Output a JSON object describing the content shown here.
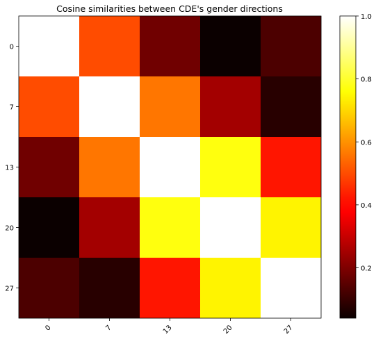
{
  "chart_data": {
    "type": "heatmap",
    "title": "Cosine similarities between CDE's gender directions",
    "colormap": "hot",
    "vmin": 0.04,
    "vmax": 1.0,
    "row_labels": [
      "0",
      "7",
      "13",
      "20",
      "27"
    ],
    "col_labels": [
      "0",
      "7",
      "13",
      "20",
      "27"
    ],
    "values": [
      [
        1.0,
        0.5,
        0.18,
        0.04,
        0.13
      ],
      [
        0.5,
        1.0,
        0.56,
        0.25,
        0.08
      ],
      [
        0.18,
        0.56,
        1.0,
        0.77,
        0.42
      ],
      [
        0.04,
        0.25,
        0.77,
        1.0,
        0.74
      ],
      [
        0.13,
        0.08,
        0.42,
        0.74,
        1.0
      ]
    ],
    "colorbar_ticks": [
      0.2,
      0.4,
      0.6,
      0.8,
      1.0
    ],
    "colorbar_tick_labels": [
      "0.2",
      "0.4",
      "0.6",
      "0.8",
      "1.0"
    ]
  }
}
